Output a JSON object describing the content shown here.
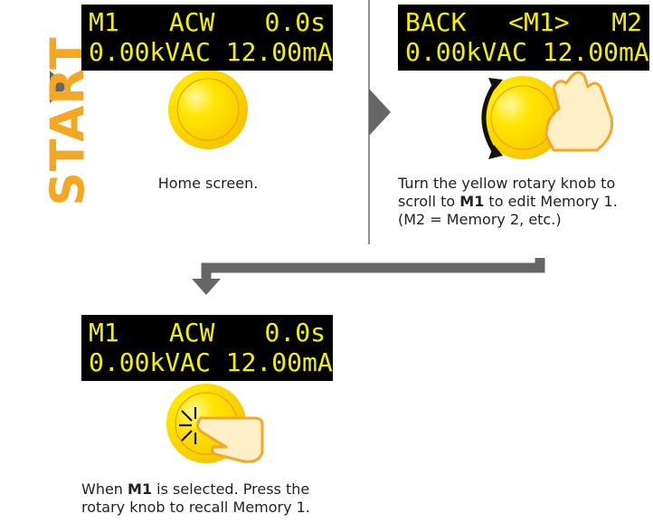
{
  "start_label": "START",
  "steps": [
    {
      "lcd": {
        "line1": [
          "M1",
          "ACW",
          "0.0s"
        ],
        "line2": "0.00kVAC 12.00mA"
      },
      "caption": [
        [
          {
            "text": "Home screen."
          }
        ]
      ]
    },
    {
      "lcd": {
        "line1": [
          "BACK",
          "<M1>",
          "M2"
        ],
        "line2": "0.00kVAC 12.00mA"
      },
      "caption": [
        [
          {
            "text": "Turn the yellow rotary knob to"
          }
        ],
        [
          {
            "text": "scroll to "
          },
          {
            "text": "M1",
            "bold": true
          },
          {
            "text": " to edit Memory 1."
          }
        ],
        [
          {
            "text": "(M2 = Memory 2, etc.)"
          }
        ]
      ]
    },
    {
      "lcd": {
        "line1": [
          "M1",
          "ACW",
          "0.0s"
        ],
        "line2": "0.00kVAC 12.00mA"
      },
      "caption": [
        [
          {
            "text": "When "
          },
          {
            "text": "M1",
            "bold": true
          },
          {
            "text": " is selected. Press the"
          }
        ],
        [
          {
            "text": "rotary knob to recall Memory 1."
          }
        ]
      ]
    }
  ]
}
